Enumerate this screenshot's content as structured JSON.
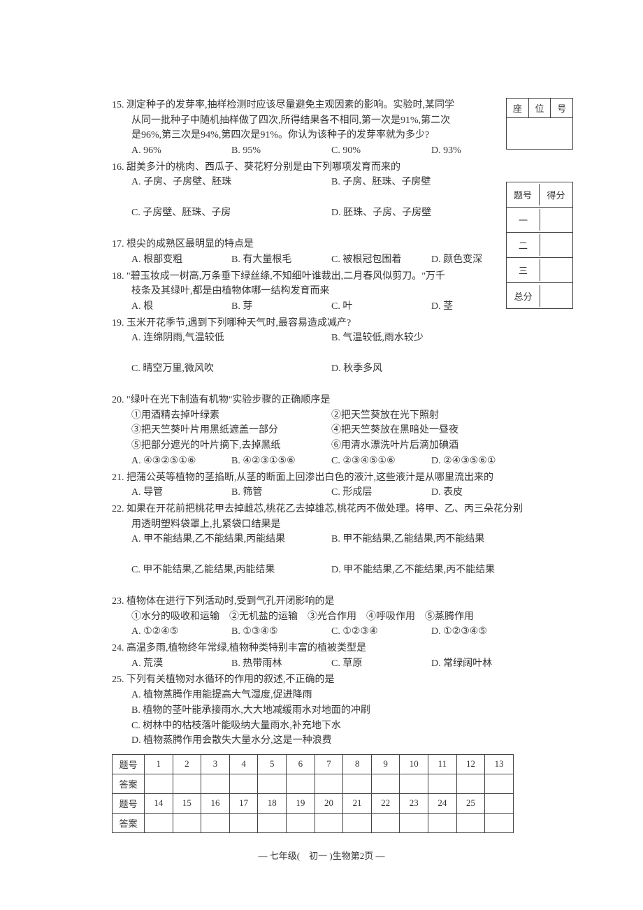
{
  "seat": {
    "c1": "座",
    "c2": "位",
    "c3": "号"
  },
  "scorebox": {
    "header_l": "题号",
    "header_r": "得分",
    "rows": [
      "一",
      "二",
      "三",
      "总分"
    ]
  },
  "q15": {
    "stem": "15. 测定种子的发芽率,抽样检测时应该尽量避免主观因素的影响。实验时,某同学从同一批种子中随机抽样做了四次,所得结果各不相同,第一次是91%,第二次是96%,第三次是94%,第四次是91%。你认为该种子的发芽率就为多少?",
    "a": "A. 96%",
    "b": "B. 95%",
    "c": "C. 90%",
    "d": "D. 93%"
  },
  "q16": {
    "stem": "16. 甜美多汁的桃肉、西瓜子、葵花籽分别是由下列哪项发育而来的",
    "a": "A. 子房、子房壁、胚珠",
    "b": "B. 子房、胚珠、子房壁",
    "c": "C. 子房壁、胚珠、子房",
    "d": "D. 胚珠、子房、子房壁"
  },
  "q17": {
    "stem": "17. 根尖的成熟区最明显的特点是",
    "a": "A. 根部变粗",
    "b": "B. 有大量根毛",
    "c": "C. 被根冠包围着",
    "d": "D. 颜色变深"
  },
  "q18": {
    "stem": "18. \"碧玉妆成一树高,万条垂下绿丝绦,不知细叶谁裁出,二月春风似剪刀。\"万千枝条及其绿叶,都是由植物体哪一结构发育而来",
    "a": "A. 根",
    "b": "B. 芽",
    "c": "C. 叶",
    "d": "D. 茎"
  },
  "q19": {
    "stem": "19. 玉米开花季节,遇到下列哪种天气时,最容易造成减产?",
    "a": "A. 连绵阴雨,气温较低",
    "b": "B. 气温较低,雨水较少",
    "c": "C. 晴空万里,微风吹",
    "d": "D. 秋季多风"
  },
  "q20": {
    "stem": "20. \"绿叶在光下制造有机物\"实验步骤的正确顺序是",
    "s1": "①用酒精去掉叶绿素",
    "s2": "②把天竺葵放在光下照射",
    "s3": "③把天竺葵叶片用黑纸遮盖一部分",
    "s4": "④把天竺葵放在黑暗处一昼夜",
    "s5": "⑤把部分遮光的叶片摘下,去掉黑纸",
    "s6": "⑥用清水漂洗叶片后滴加碘酒",
    "a": "A. ④③②⑤①⑥",
    "b": "B. ④②③①⑤⑥",
    "c": "C. ②③④⑤①⑥",
    "d": "D. ②④③⑤⑥①"
  },
  "q21": {
    "stem": "21. 把蒲公英等植物的茎掐断,从茎的断面上回渗出白色的液汁,这些液汁是从哪里流出来的",
    "a": "A. 导管",
    "b": "B. 筛管",
    "c": "C. 形成层",
    "d": "D. 表皮"
  },
  "q22": {
    "stem": "22. 如果在开花前把桃花甲去掉雌芯,桃花乙去掉雄芯,桃花丙不做处理。将甲、乙、丙三朵花分别用透明塑料袋罩上,扎紧袋口结果是",
    "a": "A. 甲不能结果,乙不能结果,丙能结果",
    "b": "B. 甲不能结果,乙能结果,丙不能结果",
    "c": "C. 甲不能结果,乙能结果,丙能结果",
    "d": "D. 甲不能结果,乙不能结果,丙不能结果"
  },
  "q23": {
    "stem": "23. 植物体在进行下列活动时,受到气孔开闭影响的是",
    "sub": "①水分的吸收和运输　②无机盐的运输　③光合作用　④呼吸作用　⑤蒸腾作用",
    "a": "A. ①②④⑤",
    "b": "B. ①③④⑤",
    "c": "C. ①②③④",
    "d": "D. ①②③④⑤"
  },
  "q24": {
    "stem": "24. 高温多雨,植物终年常绿,植物种类特别丰富的植被类型是",
    "a": "A. 荒漠",
    "b": "B. 热带雨林",
    "c": "C. 草原",
    "d": "D. 常绿阔叶林"
  },
  "q25": {
    "stem": "25. 下列有关植物对水循环的作用的叙述,不正确的是",
    "a": "A. 植物蒸腾作用能提高大气湿度,促进降雨",
    "b": "B. 植物的茎叶能承接雨水,大大地减缓雨水对地面的冲刷",
    "c": "C. 树林中的枯枝落叶能吸纳大量雨水,补充地下水",
    "d": "D. 植物蒸腾作用会散失大量水分,这是一种浪费"
  },
  "table": {
    "label_q": "题号",
    "label_a": "答案",
    "cols": [
      "1",
      "2",
      "3",
      "4",
      "5",
      "6",
      "7",
      "8",
      "9",
      "10",
      "11",
      "12",
      "13"
    ],
    "cols2": [
      "14",
      "15",
      "16",
      "17",
      "18",
      "19",
      "20",
      "21",
      "22",
      "23",
      "24",
      "25",
      ""
    ]
  },
  "footer": "— 七年级(　初一 )生物第2页 —"
}
